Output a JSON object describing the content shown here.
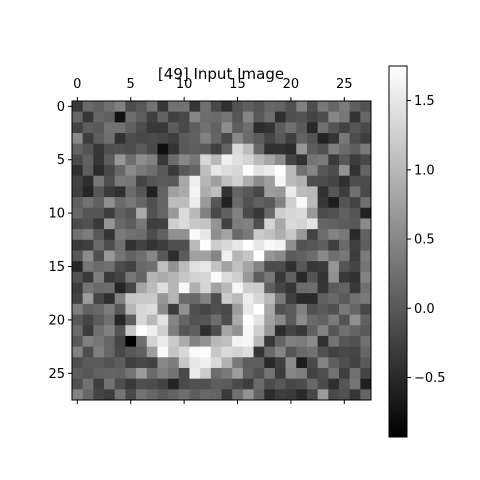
{
  "chart_data": {
    "type": "heatmap",
    "title": "[49] Input Image",
    "xlabel": "",
    "ylabel": "",
    "colormap": "gray",
    "rows": 28,
    "cols": 28,
    "vmin": -0.93,
    "vmax": 1.75,
    "x_ticks": [
      0,
      5,
      10,
      15,
      20,
      25
    ],
    "y_ticks": [
      0,
      5,
      10,
      15,
      20,
      25
    ],
    "x_tick_position": "top",
    "colorbar_ticks": [
      -0.5,
      0.0,
      0.5,
      1.0,
      1.5
    ],
    "colorbar_tick_labels": [
      "−0.5",
      "0.0",
      "0.5",
      "1.0",
      "1.5"
    ],
    "grid": false,
    "content": "noisy digit 8",
    "noise_level": 0.3,
    "noise_seed": 49
  }
}
